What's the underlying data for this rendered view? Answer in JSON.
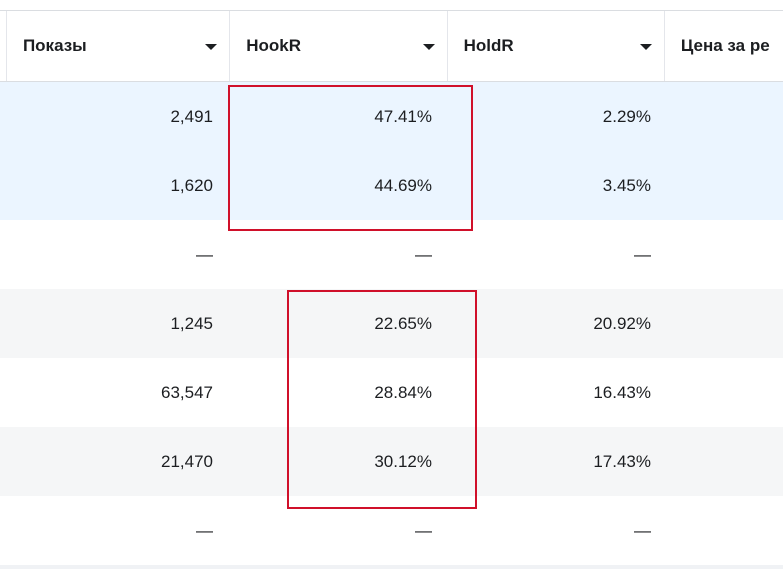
{
  "columns": [
    {
      "label": "Показы"
    },
    {
      "label": "HookR"
    },
    {
      "label": "HoldR"
    },
    {
      "label": "Цена за ре"
    }
  ],
  "rows": [
    {
      "impressions": "2,491",
      "hookr": "47.41%",
      "holdr": "2.29%",
      "style": "selected"
    },
    {
      "impressions": "1,620",
      "hookr": "44.69%",
      "holdr": "3.45%",
      "style": "selected"
    },
    {
      "impressions": "—",
      "hookr": "—",
      "holdr": "—",
      "style": "plain"
    },
    {
      "impressions": "1,245",
      "hookr": "22.65%",
      "holdr": "20.92%",
      "style": "striped"
    },
    {
      "impressions": "63,547",
      "hookr": "28.84%",
      "holdr": "16.43%",
      "style": "plain"
    },
    {
      "impressions": "21,470",
      "hookr": "30.12%",
      "holdr": "17.43%",
      "style": "striped"
    },
    {
      "impressions": "—",
      "hookr": "—",
      "holdr": "—",
      "style": "plain"
    }
  ],
  "colors": {
    "selected_row": "#ebf5ff",
    "striped_row": "#f5f6f7",
    "highlight_box": "#d0102a"
  }
}
